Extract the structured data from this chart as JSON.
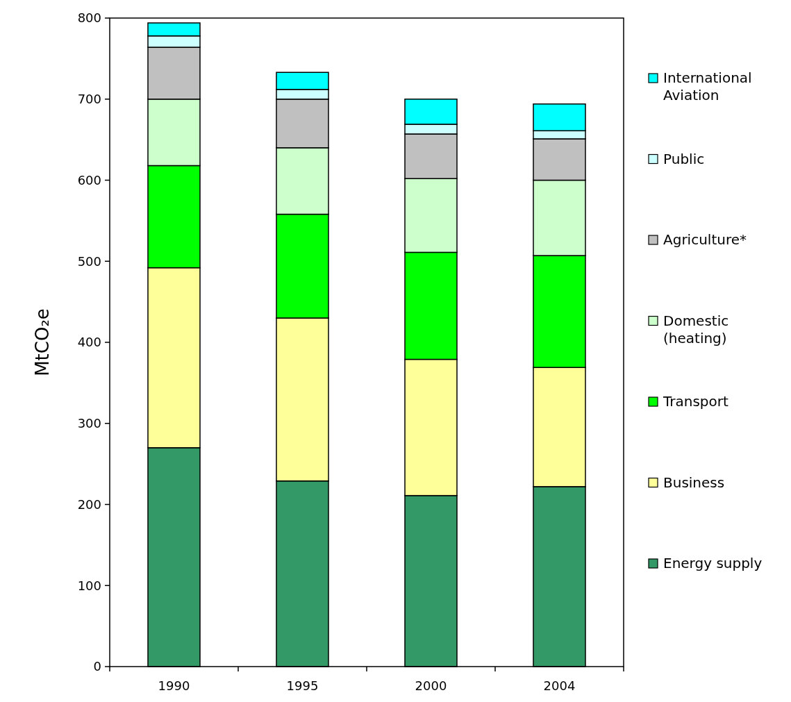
{
  "chart_data": {
    "type": "bar",
    "stacked": true,
    "ylabel": "MtCO₂e",
    "categories": [
      "1990",
      "1995",
      "2000",
      "2004"
    ],
    "ylim": [
      0,
      800
    ],
    "yticks": [
      0,
      100,
      200,
      300,
      400,
      500,
      600,
      700,
      800
    ],
    "grid": false,
    "legend": "right",
    "series": [
      {
        "name": "Energy supply",
        "color": "#339966",
        "values": [
          270,
          229,
          211,
          222
        ]
      },
      {
        "name": "Business",
        "color": "#ffff99",
        "values": [
          222,
          201,
          168,
          147
        ]
      },
      {
        "name": "Transport",
        "color": "#00ff00",
        "values": [
          126,
          128,
          132,
          138
        ]
      },
      {
        "name": "Domestic (heating)",
        "color": "#ccffcc",
        "values": [
          82,
          82,
          91,
          93
        ]
      },
      {
        "name": "Agriculture*",
        "color": "#c0c0c0",
        "values": [
          64,
          60,
          55,
          51
        ]
      },
      {
        "name": "Public",
        "color": "#ccffff",
        "values": [
          14,
          12,
          12,
          10
        ]
      },
      {
        "name": "International Aviation",
        "color": "#00ffff",
        "values": [
          16,
          21,
          31,
          33
        ]
      }
    ]
  }
}
